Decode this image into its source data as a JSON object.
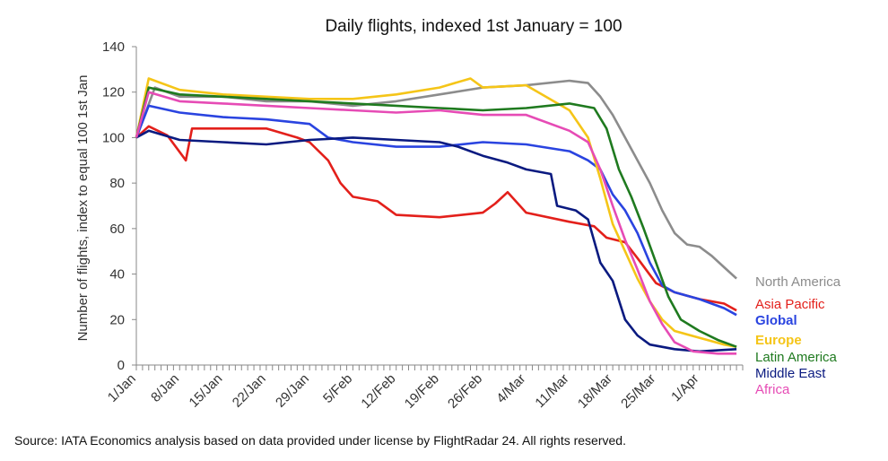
{
  "chart_data": {
    "type": "line",
    "title": "Daily flights, indexed 1st January = 100",
    "xlabel": "",
    "ylabel": "Number of flights, index to equal 100 1st Jan",
    "ylim": [
      0,
      140
    ],
    "yticks": [
      0,
      20,
      40,
      60,
      80,
      100,
      120,
      140
    ],
    "x_range": [
      "1/Jan",
      "8/Apr"
    ],
    "x_tick_labels": [
      "1/Jan",
      "8/Jan",
      "15/Jan",
      "22/Jan",
      "29/Jan",
      "5/Feb",
      "12/Feb",
      "19/Feb",
      "26/Feb",
      "4/Mar",
      "11/Mar",
      "18/Mar",
      "25/Mar",
      "1/Apr"
    ],
    "grid": false,
    "legend_position": "right, at line ends",
    "series": [
      {
        "name": "North America",
        "color": "#8c8c8c",
        "points": [
          [
            "1/Jan",
            100
          ],
          [
            "4/Jan",
            122
          ],
          [
            "8/Jan",
            118
          ],
          [
            "15/Jan",
            118
          ],
          [
            "22/Jan",
            116
          ],
          [
            "29/Jan",
            116
          ],
          [
            "5/Feb",
            114
          ],
          [
            "12/Feb",
            116
          ],
          [
            "19/Feb",
            119
          ],
          [
            "26/Feb",
            122
          ],
          [
            "4/Mar",
            123
          ],
          [
            "11/Mar",
            125
          ],
          [
            "14/Mar",
            124
          ],
          [
            "16/Mar",
            118
          ],
          [
            "18/Mar",
            110
          ],
          [
            "20/Mar",
            100
          ],
          [
            "22/Mar",
            90
          ],
          [
            "24/Mar",
            80
          ],
          [
            "26/Mar",
            68
          ],
          [
            "28/Mar",
            58
          ],
          [
            "30/Mar",
            53
          ],
          [
            "1/Apr",
            52
          ],
          [
            "3/Apr",
            48
          ],
          [
            "5/Apr",
            43
          ],
          [
            "7/Apr",
            38
          ]
        ]
      },
      {
        "name": "Asia Pacific",
        "color": "#e3201b",
        "points": [
          [
            "1/Jan",
            100
          ],
          [
            "3/Jan",
            105
          ],
          [
            "6/Jan",
            101
          ],
          [
            "9/Jan",
            90
          ],
          [
            "10/Jan",
            104
          ],
          [
            "15/Jan",
            104
          ],
          [
            "22/Jan",
            104
          ],
          [
            "27/Jan",
            100
          ],
          [
            "29/Jan",
            98
          ],
          [
            "1/Feb",
            90
          ],
          [
            "3/Feb",
            80
          ],
          [
            "5/Feb",
            74
          ],
          [
            "9/Feb",
            72
          ],
          [
            "12/Feb",
            66
          ],
          [
            "19/Feb",
            65
          ],
          [
            "26/Feb",
            67
          ],
          [
            "28/Feb",
            71
          ],
          [
            "1/Mar",
            76
          ],
          [
            "4/Mar",
            67
          ],
          [
            "11/Mar",
            63
          ],
          [
            "15/Mar",
            61
          ],
          [
            "17/Mar",
            56
          ],
          [
            "20/Mar",
            54
          ],
          [
            "22/Mar",
            47
          ],
          [
            "25/Mar",
            36
          ],
          [
            "28/Mar",
            32
          ],
          [
            "1/Apr",
            29
          ],
          [
            "5/Apr",
            27
          ],
          [
            "7/Apr",
            24
          ]
        ]
      },
      {
        "name": "Global",
        "color": "#2a44e0",
        "points": [
          [
            "1/Jan",
            100
          ],
          [
            "3/Jan",
            114
          ],
          [
            "8/Jan",
            111
          ],
          [
            "15/Jan",
            109
          ],
          [
            "22/Jan",
            108
          ],
          [
            "29/Jan",
            106
          ],
          [
            "1/Feb",
            100
          ],
          [
            "5/Feb",
            98
          ],
          [
            "12/Feb",
            96
          ],
          [
            "19/Feb",
            96
          ],
          [
            "26/Feb",
            98
          ],
          [
            "4/Mar",
            97
          ],
          [
            "11/Mar",
            94
          ],
          [
            "14/Mar",
            90
          ],
          [
            "16/Mar",
            86
          ],
          [
            "18/Mar",
            75
          ],
          [
            "20/Mar",
            68
          ],
          [
            "22/Mar",
            58
          ],
          [
            "24/Mar",
            45
          ],
          [
            "26/Mar",
            35
          ],
          [
            "28/Mar",
            32
          ],
          [
            "1/Apr",
            29
          ],
          [
            "5/Apr",
            25
          ],
          [
            "7/Apr",
            22
          ]
        ]
      },
      {
        "name": "Europe",
        "color": "#f5c518",
        "points": [
          [
            "1/Jan",
            100
          ],
          [
            "3/Jan",
            126
          ],
          [
            "8/Jan",
            121
          ],
          [
            "15/Jan",
            119
          ],
          [
            "22/Jan",
            118
          ],
          [
            "29/Jan",
            117
          ],
          [
            "5/Feb",
            117
          ],
          [
            "12/Feb",
            119
          ],
          [
            "19/Feb",
            122
          ],
          [
            "24/Feb",
            126
          ],
          [
            "26/Feb",
            122
          ],
          [
            "4/Mar",
            123
          ],
          [
            "11/Mar",
            112
          ],
          [
            "14/Mar",
            100
          ],
          [
            "16/Mar",
            82
          ],
          [
            "18/Mar",
            62
          ],
          [
            "20/Mar",
            50
          ],
          [
            "22/Mar",
            38
          ],
          [
            "24/Mar",
            28
          ],
          [
            "26/Mar",
            20
          ],
          [
            "28/Mar",
            15
          ],
          [
            "1/Apr",
            12
          ],
          [
            "5/Apr",
            9
          ],
          [
            "7/Apr",
            8
          ]
        ]
      },
      {
        "name": "Latin America",
        "color": "#1f7a1f",
        "points": [
          [
            "1/Jan",
            100
          ],
          [
            "3/Jan",
            122
          ],
          [
            "8/Jan",
            119
          ],
          [
            "15/Jan",
            118
          ],
          [
            "22/Jan",
            117
          ],
          [
            "29/Jan",
            116
          ],
          [
            "5/Feb",
            115
          ],
          [
            "12/Feb",
            114
          ],
          [
            "19/Feb",
            113
          ],
          [
            "26/Feb",
            112
          ],
          [
            "4/Mar",
            113
          ],
          [
            "11/Mar",
            115
          ],
          [
            "15/Mar",
            113
          ],
          [
            "17/Mar",
            104
          ],
          [
            "19/Mar",
            86
          ],
          [
            "21/Mar",
            74
          ],
          [
            "23/Mar",
            60
          ],
          [
            "25/Mar",
            45
          ],
          [
            "27/Mar",
            30
          ],
          [
            "29/Mar",
            20
          ],
          [
            "1/Apr",
            15
          ],
          [
            "4/Apr",
            11
          ],
          [
            "7/Apr",
            8
          ]
        ]
      },
      {
        "name": "Middle East",
        "color": "#0a1a80",
        "points": [
          [
            "1/Jan",
            100
          ],
          [
            "3/Jan",
            103
          ],
          [
            "8/Jan",
            99
          ],
          [
            "15/Jan",
            98
          ],
          [
            "22/Jan",
            97
          ],
          [
            "29/Jan",
            99
          ],
          [
            "5/Feb",
            100
          ],
          [
            "12/Feb",
            99
          ],
          [
            "19/Feb",
            98
          ],
          [
            "22/Feb",
            96
          ],
          [
            "26/Feb",
            92
          ],
          [
            "1/Mar",
            89
          ],
          [
            "4/Mar",
            86
          ],
          [
            "8/Mar",
            84
          ],
          [
            "9/Mar",
            70
          ],
          [
            "12/Mar",
            68
          ],
          [
            "14/Mar",
            64
          ],
          [
            "16/Mar",
            45
          ],
          [
            "18/Mar",
            37
          ],
          [
            "20/Mar",
            20
          ],
          [
            "22/Mar",
            13
          ],
          [
            "24/Mar",
            9
          ],
          [
            "28/Mar",
            7
          ],
          [
            "1/Apr",
            6
          ],
          [
            "7/Apr",
            7
          ]
        ]
      },
      {
        "name": "Africa",
        "color": "#e64bb5",
        "points": [
          [
            "1/Jan",
            100
          ],
          [
            "3/Jan",
            120
          ],
          [
            "8/Jan",
            116
          ],
          [
            "15/Jan",
            115
          ],
          [
            "22/Jan",
            114
          ],
          [
            "29/Jan",
            113
          ],
          [
            "5/Feb",
            112
          ],
          [
            "12/Feb",
            111
          ],
          [
            "19/Feb",
            112
          ],
          [
            "26/Feb",
            110
          ],
          [
            "4/Mar",
            110
          ],
          [
            "11/Mar",
            103
          ],
          [
            "14/Mar",
            98
          ],
          [
            "16/Mar",
            86
          ],
          [
            "18/Mar",
            70
          ],
          [
            "20/Mar",
            55
          ],
          [
            "22/Mar",
            42
          ],
          [
            "24/Mar",
            28
          ],
          [
            "26/Mar",
            18
          ],
          [
            "28/Mar",
            10
          ],
          [
            "31/Mar",
            6
          ],
          [
            "4/Apr",
            5
          ],
          [
            "7/Apr",
            5
          ]
        ]
      }
    ]
  },
  "source": "Source: IATA Economics analysis based on data provided under license by FlightRadar 24. All rights reserved."
}
